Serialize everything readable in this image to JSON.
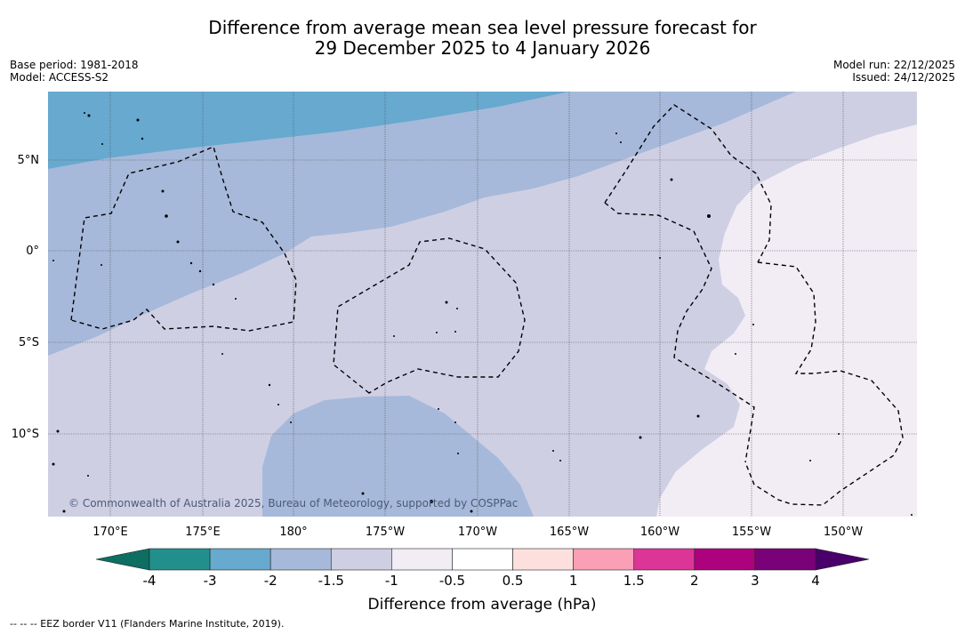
{
  "title_line1": "Difference from average mean sea level pressure forecast for",
  "title_line2": "29 December 2025 to 4 January 2026",
  "base_period": "Base period: 1981-2018",
  "model": "Model: ACCESS-S2",
  "model_run": "Model run: 22/12/2025",
  "issued": "Issued: 24/12/2025",
  "copyright": "© Commonwealth of Australia 2025, Bureau of Meteorology, supported by COSPPac",
  "footnote": "--  --  -- EEZ border V11 (Flanders Marine Institute, 2019).",
  "map": {
    "lat_labels": [
      "5°N",
      "0°",
      "5°S",
      "10°S"
    ],
    "lon_labels": [
      "170°E",
      "175°E",
      "180°",
      "175°W",
      "170°W",
      "165°W",
      "160°W",
      "155°W",
      "150°W"
    ]
  },
  "colorbar": {
    "label": "Difference from average (hPa)",
    "ticks": [
      "-4",
      "-3",
      "-2",
      "-1.5",
      "-1",
      "-0.5",
      "0.5",
      "1",
      "1.5",
      "2",
      "3",
      "4"
    ],
    "colors": {
      "below_min": "#0d6e62",
      "bins": [
        "#21908d",
        "#67a9cf",
        "#a6b9da",
        "#cfcfe4",
        "#f2ecf5",
        "#ffffff",
        "#fde0dd",
        "#fa9fb5",
        "#dd3497",
        "#ae017e",
        "#7a0177"
      ],
      "above_max": "#49006a"
    }
  },
  "colors": {
    "field_neg3": "#67a9cf",
    "field_neg2": "#a6b9da",
    "field_neg15": "#cfcfe4",
    "field_neg1": "#f2ecf5",
    "eez_border": "#000000",
    "grid": "#555555"
  }
}
